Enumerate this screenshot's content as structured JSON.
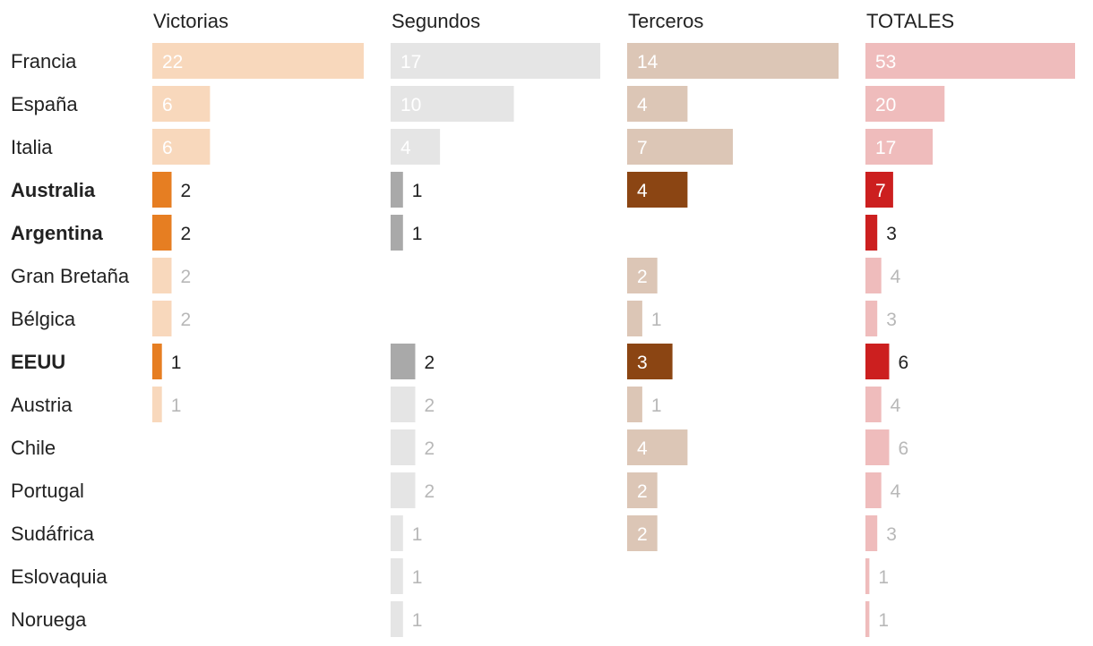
{
  "chart_data": {
    "type": "bar",
    "layout": "small-multiples-horizontal-bars",
    "categories": [
      "Francia",
      "España",
      "Italia",
      "Australia",
      "Argentina",
      "Gran Bretaña",
      "Bélgica",
      "EEUU",
      "Austria",
      "Chile",
      "Portugal",
      "Sudáfrica",
      "Eslovaquia",
      "Noruega"
    ],
    "highlighted": [
      "Australia",
      "Argentina",
      "EEUU"
    ],
    "series": [
      {
        "name": "Victorias",
        "values": [
          22,
          6,
          6,
          2,
          2,
          2,
          2,
          1,
          1,
          null,
          null,
          null,
          null,
          null
        ],
        "color": "#e67e22",
        "faded_color": "#f8d8bc"
      },
      {
        "name": "Segundos",
        "values": [
          17,
          10,
          4,
          1,
          1,
          null,
          null,
          2,
          2,
          2,
          2,
          1,
          1,
          1
        ],
        "color": "#a9a9a9",
        "faded_color": "#e5e5e5"
      },
      {
        "name": "Terceros",
        "values": [
          14,
          4,
          7,
          4,
          null,
          2,
          1,
          3,
          1,
          4,
          2,
          2,
          null,
          null
        ],
        "color": "#8b4513",
        "faded_color": "#dcc6b6"
      },
      {
        "name": "TOTALES",
        "values": [
          53,
          20,
          17,
          7,
          3,
          4,
          3,
          6,
          4,
          6,
          4,
          3,
          1,
          1
        ],
        "color": "#cc1f1f",
        "faded_color": "#efbcbc"
      }
    ],
    "xlabel": "",
    "ylabel": "",
    "legend": "none",
    "grid": false
  }
}
